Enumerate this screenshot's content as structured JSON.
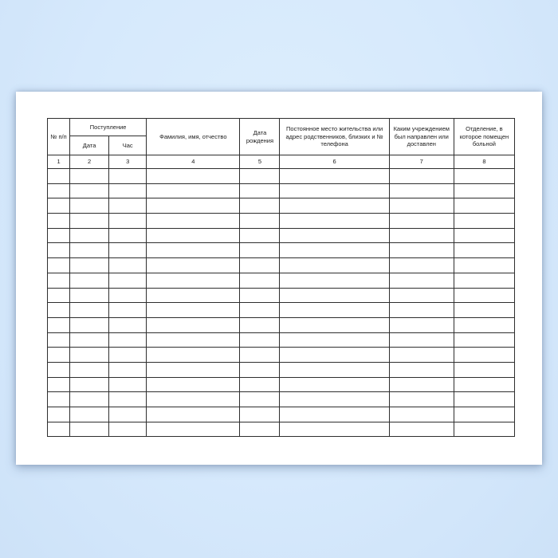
{
  "colors": {
    "background": "#d6e9fc",
    "paper": "#ffffff",
    "table_border": "#2e2e2e",
    "text": "#1c1c1c"
  },
  "table": {
    "header": {
      "col_no": "№ п/п",
      "admission_group": "Поступление",
      "admission_date": "Дата",
      "admission_hour": "Час",
      "full_name": "Фамилия, имя, отчество",
      "birth_date": "Дата рождения",
      "address": "Постоянное место жительства или адрес родственников, близких и № телефона",
      "referring_institution": "Каким учреждением был направлен или доставлен",
      "department": "Отделение, в которое помещен больной"
    },
    "column_numbers": [
      "1",
      "2",
      "3",
      "4",
      "5",
      "6",
      "7",
      "8"
    ],
    "empty_row_count": 18
  }
}
